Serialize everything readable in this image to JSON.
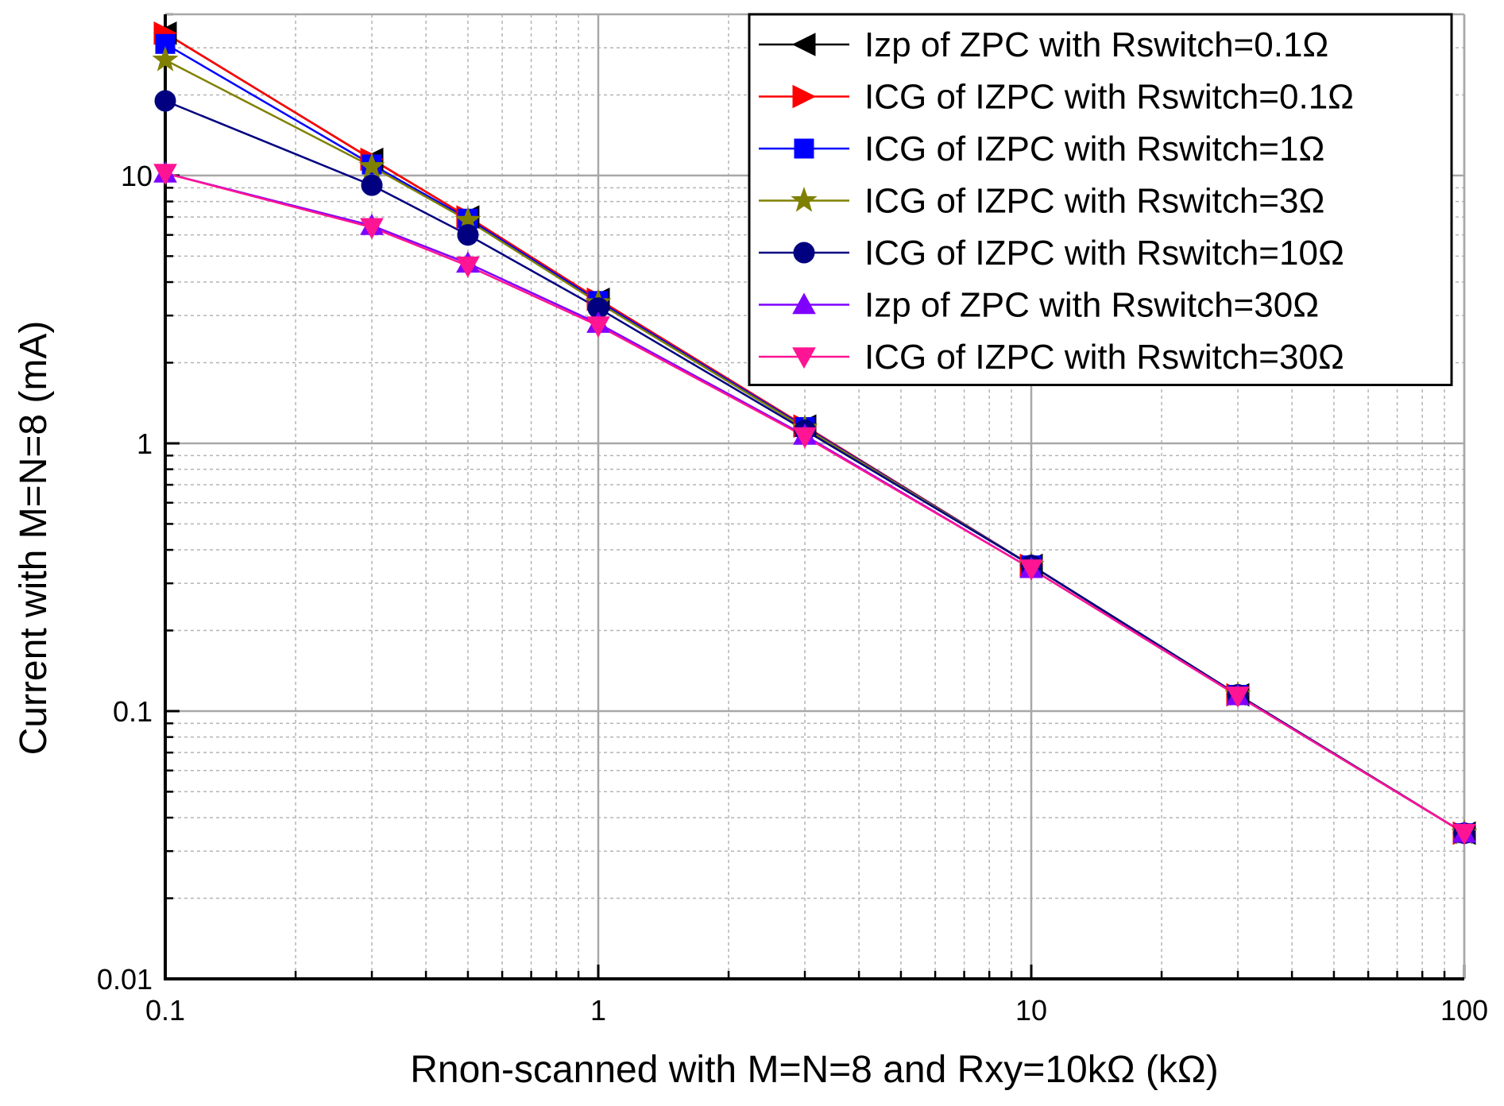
{
  "chart_data": {
    "type": "line",
    "xscale": "log",
    "yscale": "log",
    "xlabel": "Rnon-scanned with M=N=8 and Rxy=10kΩ (kΩ)",
    "ylabel": "Current  with M=N=8 (mA)",
    "xlim": [
      0.1,
      100
    ],
    "ylim": [
      0.01,
      40
    ],
    "x_ticks": [
      0.1,
      1,
      10,
      100
    ],
    "x_tick_labels": [
      "0.1",
      "1",
      "10",
      "100"
    ],
    "y_ticks": [
      0.01,
      0.1,
      1,
      10
    ],
    "y_tick_labels": [
      "0.01",
      "0.1",
      "1",
      "10"
    ],
    "grid": true,
    "legend_position": "top-right",
    "x": [
      0.1,
      0.3,
      0.5,
      1,
      3,
      10,
      30,
      100
    ],
    "series": [
      {
        "name": "Izp of ZPC with Rswitch=0.1Ω",
        "color": "#000000",
        "marker": "triangle-left",
        "values": [
          34,
          11.5,
          7.0,
          3.45,
          1.16,
          0.35,
          0.115,
          0.035
        ]
      },
      {
        "name": "ICG of IZPC with Rswitch=0.1Ω",
        "color": "#ff0000",
        "marker": "triangle-right",
        "values": [
          34,
          11.5,
          7.0,
          3.45,
          1.16,
          0.35,
          0.115,
          0.035
        ]
      },
      {
        "name": "ICG of IZPC with Rswitch=1Ω",
        "color": "#0000ff",
        "marker": "square",
        "values": [
          31,
          11.0,
          6.9,
          3.4,
          1.15,
          0.35,
          0.115,
          0.035
        ]
      },
      {
        "name": "ICG of IZPC with Rswitch=3Ω",
        "color": "#808000",
        "marker": "star",
        "values": [
          27,
          10.8,
          6.8,
          3.35,
          1.14,
          0.35,
          0.115,
          0.035
        ]
      },
      {
        "name": "ICG of IZPC with Rswitch=10Ω",
        "color": "#000080",
        "marker": "circle",
        "values": [
          19,
          9.2,
          6.0,
          3.2,
          1.12,
          0.35,
          0.115,
          0.035
        ]
      },
      {
        "name": "Izp of ZPC with Rswitch=30Ω",
        "color": "#8000ff",
        "marker": "triangle-up",
        "values": [
          10.2,
          6.5,
          4.7,
          2.8,
          1.07,
          0.34,
          0.114,
          0.035
        ]
      },
      {
        "name": "ICG of IZPC with Rswitch=30Ω",
        "color": "#ff1493",
        "marker": "triangle-down",
        "values": [
          10.2,
          6.4,
          4.6,
          2.75,
          1.06,
          0.34,
          0.114,
          0.035
        ]
      }
    ]
  }
}
